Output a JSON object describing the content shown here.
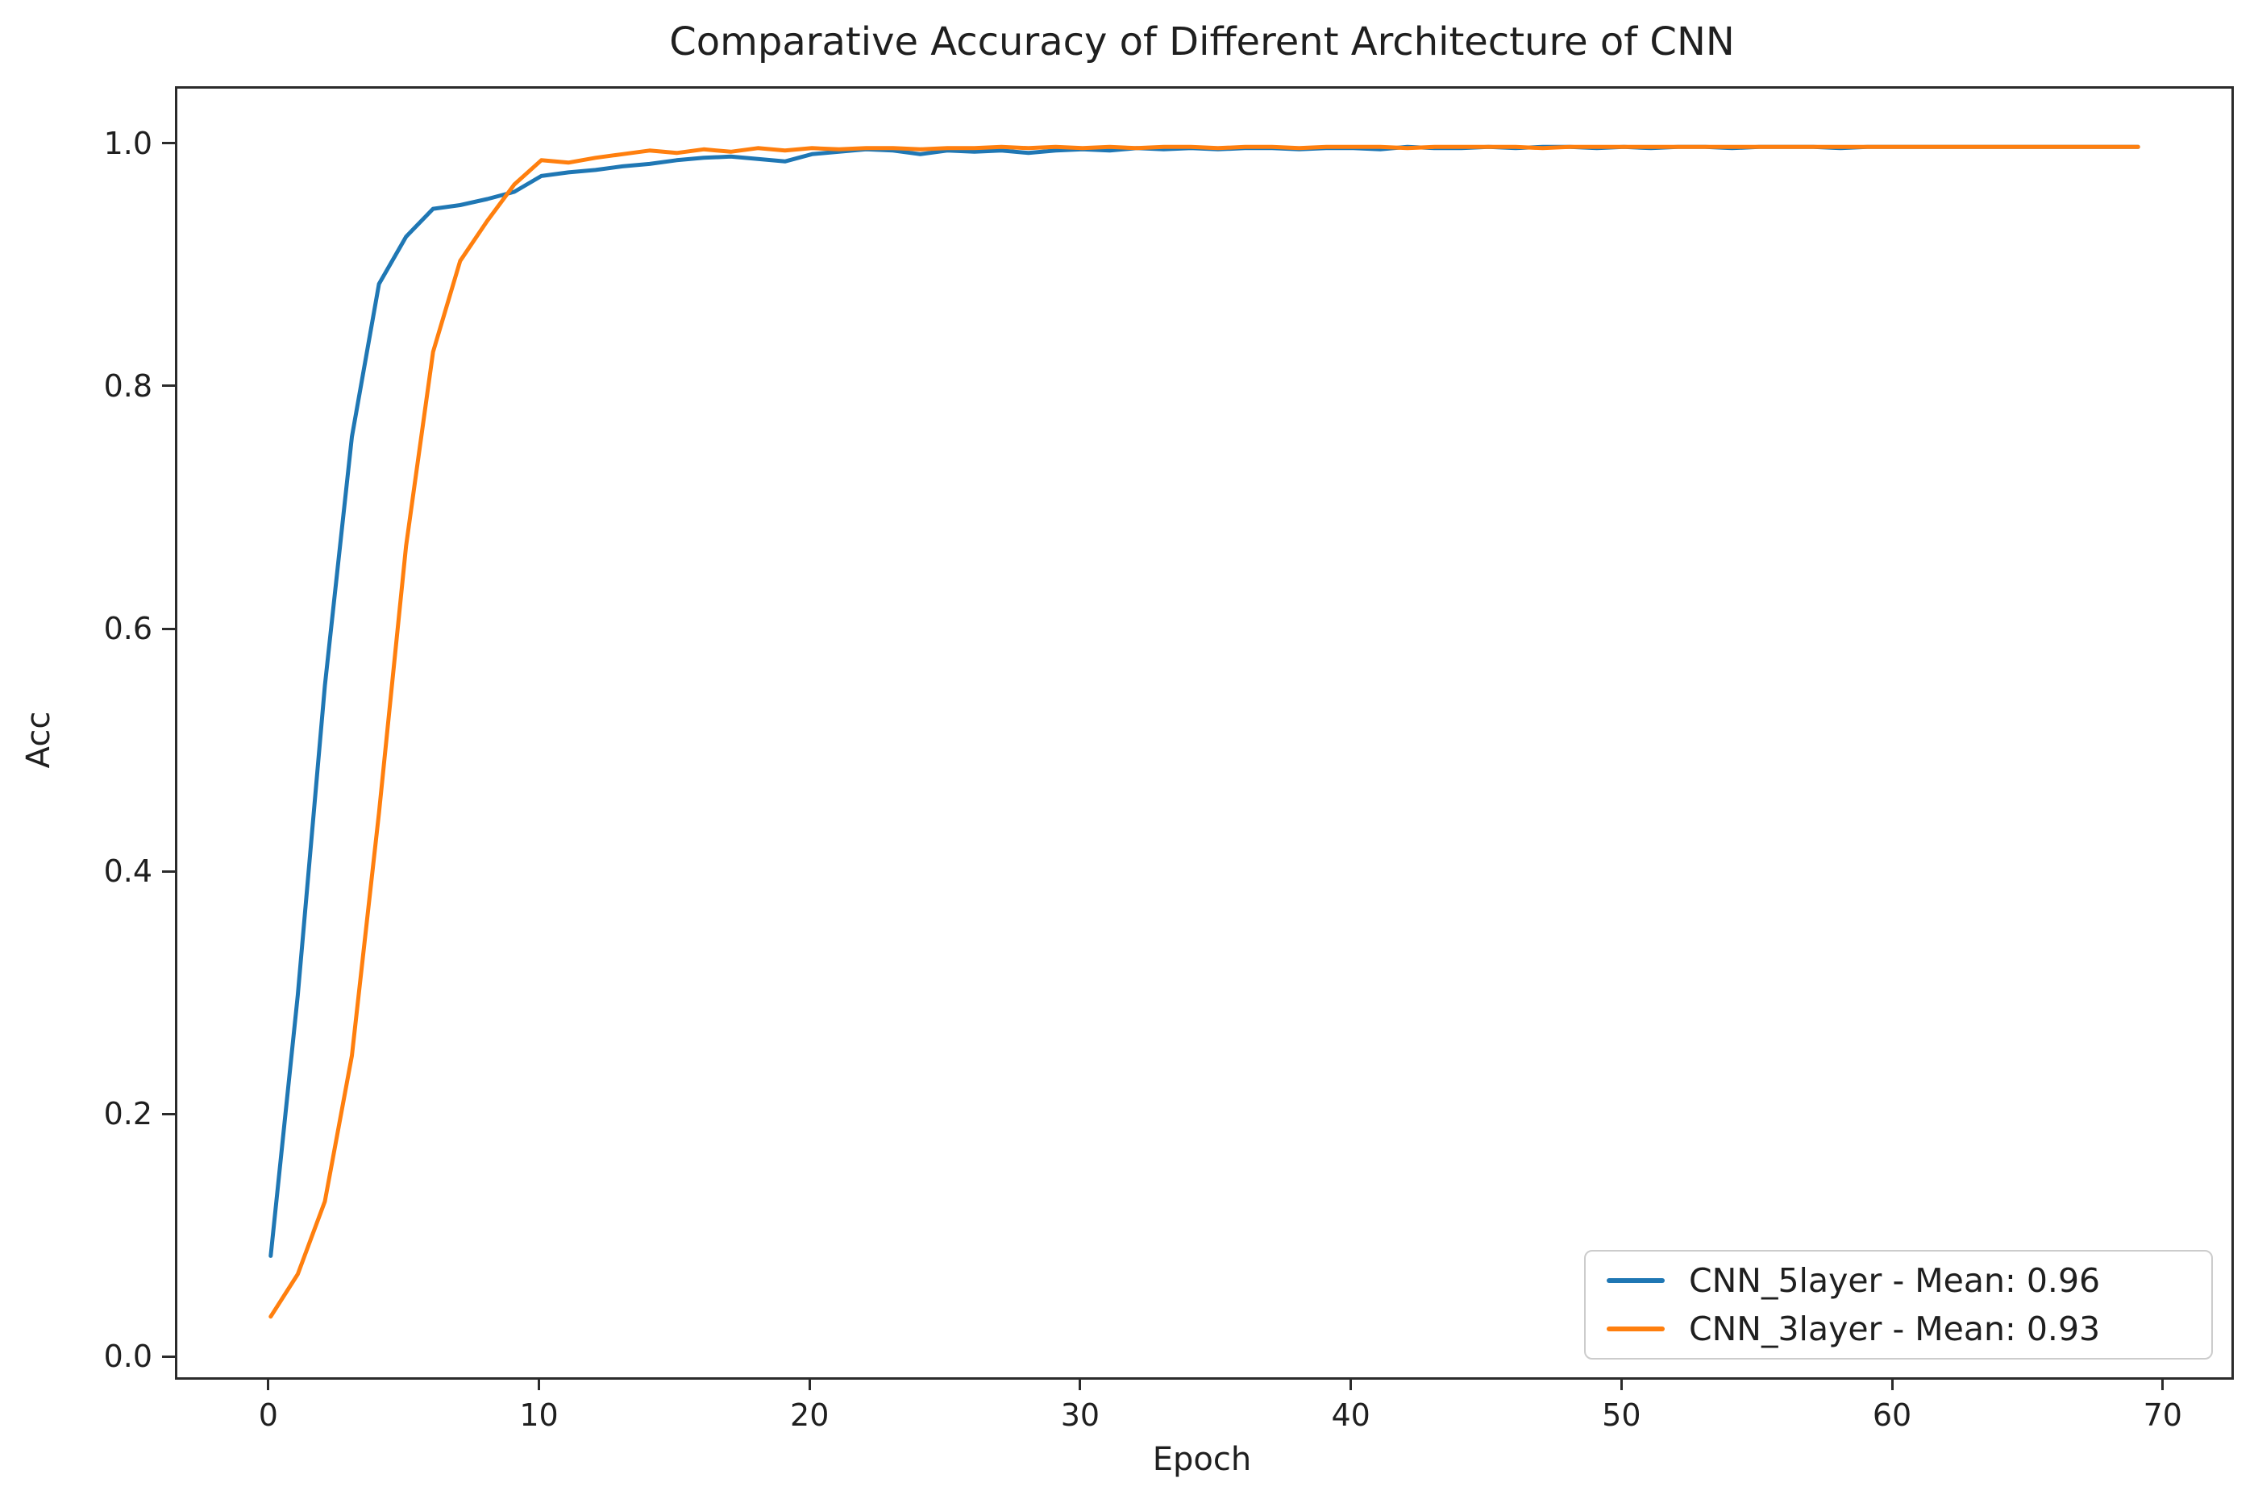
{
  "figure": {
    "background": "#ffffff",
    "text_color": "#1f1f1f",
    "spine_color": "#2b2b2b"
  },
  "chart_data": {
    "type": "line",
    "title": "Comparative Accuracy of Different Architecture of CNN",
    "xlabel": "Epoch",
    "ylabel": "Acc",
    "grid": false,
    "legend_position": "lower right",
    "xlim": [
      -3.45,
      72.45
    ],
    "ylim": [
      -0.015,
      1.047
    ],
    "x_ticks": [
      0,
      10,
      20,
      30,
      40,
      50,
      60,
      70
    ],
    "y_ticks": [
      0.0,
      0.2,
      0.4,
      0.6,
      0.8,
      1.0
    ],
    "y_tick_labels": [
      "0.0",
      "0.2",
      "0.4",
      "0.6",
      "0.8",
      "1.0"
    ],
    "x": [
      0,
      1,
      2,
      3,
      4,
      5,
      6,
      7,
      8,
      9,
      10,
      11,
      12,
      13,
      14,
      15,
      16,
      17,
      18,
      19,
      20,
      21,
      22,
      23,
      24,
      25,
      26,
      27,
      28,
      29,
      30,
      31,
      32,
      33,
      34,
      35,
      36,
      37,
      38,
      39,
      40,
      41,
      42,
      43,
      44,
      45,
      46,
      47,
      48,
      49,
      50,
      51,
      52,
      53,
      54,
      55,
      56,
      57,
      58,
      59,
      60,
      61,
      62,
      63,
      64,
      65,
      66,
      67,
      68,
      69
    ],
    "series": [
      {
        "name": "CNN_5layer - Mean: 0.96",
        "color": "#1f77b4",
        "mean": 0.96,
        "values": [
          0.085,
          0.3,
          0.555,
          0.76,
          0.886,
          0.925,
          0.948,
          0.951,
          0.956,
          0.962,
          0.975,
          0.978,
          0.98,
          0.983,
          0.985,
          0.988,
          0.99,
          0.991,
          0.989,
          0.987,
          0.993,
          0.995,
          0.997,
          0.996,
          0.993,
          0.996,
          0.995,
          0.996,
          0.994,
          0.996,
          0.997,
          0.996,
          0.998,
          0.997,
          0.998,
          0.997,
          0.998,
          0.998,
          0.997,
          0.998,
          0.998,
          0.997,
          0.999,
          0.998,
          0.998,
          0.999,
          0.998,
          0.999,
          0.999,
          0.998,
          0.999,
          0.998,
          0.999,
          0.999,
          0.998,
          0.999,
          0.999,
          0.999,
          0.998,
          0.999,
          0.999,
          0.999,
          0.999,
          0.999,
          0.999,
          0.999,
          0.999,
          0.999,
          0.999,
          0.999
        ]
      },
      {
        "name": "CNN_3layer - Mean: 0.93",
        "color": "#ff7f0e",
        "mean": 0.93,
        "values": [
          0.035,
          0.07,
          0.13,
          0.25,
          0.45,
          0.67,
          0.83,
          0.905,
          0.938,
          0.968,
          0.988,
          0.986,
          0.99,
          0.993,
          0.996,
          0.994,
          0.997,
          0.995,
          0.998,
          0.996,
          0.998,
          0.997,
          0.998,
          0.998,
          0.997,
          0.998,
          0.998,
          0.999,
          0.998,
          0.999,
          0.998,
          0.999,
          0.998,
          0.999,
          0.999,
          0.998,
          0.999,
          0.999,
          0.998,
          0.999,
          0.999,
          0.999,
          0.998,
          0.999,
          0.999,
          0.999,
          0.999,
          0.998,
          0.999,
          0.999,
          0.999,
          0.999,
          0.999,
          0.999,
          0.999,
          0.999,
          0.999,
          0.999,
          0.999,
          0.999,
          0.999,
          0.999,
          0.999,
          0.999,
          0.999,
          0.999,
          0.999,
          0.999,
          0.999,
          0.999
        ]
      }
    ]
  }
}
